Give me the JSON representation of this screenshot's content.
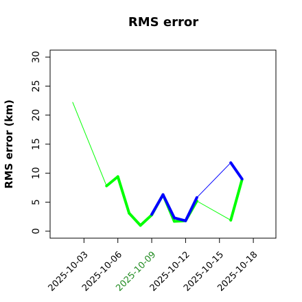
{
  "chart_data": {
    "type": "line",
    "title": "RMS error",
    "ylabel": "RMS error (km)",
    "x": [
      "2025-10-02",
      "2025-10-05",
      "2025-10-06",
      "2025-10-07",
      "2025-10-08",
      "2025-10-09",
      "2025-10-10",
      "2025-10-11",
      "2025-10-12",
      "2025-10-13",
      "2025-10-16",
      "2025-10-17"
    ],
    "series": [
      {
        "color": "#00ff00",
        "values": [
          22.2,
          7.8,
          9.4,
          3.1,
          1.0,
          2.8,
          6.3,
          1.7,
          1.8,
          5.2,
          1.9,
          8.9
        ]
      },
      {
        "color": "#0000ff",
        "values": [
          null,
          null,
          null,
          null,
          null,
          2.9,
          6.3,
          2.3,
          1.8,
          5.8,
          11.8,
          9.0
        ]
      }
    ],
    "xlim": [
      "2025-09-30",
      "2025-10-20"
    ],
    "xticks": [
      "2025-10-03",
      "2025-10-06",
      "2025-10-09",
      "2025-10-12",
      "2025-10-15",
      "2025-10-18"
    ],
    "xtick_colors": [
      "#000000",
      "#000000",
      "#228b22",
      "#000000",
      "#000000",
      "#000000"
    ],
    "ylim": [
      -1.2,
      31.2
    ],
    "yticks": [
      0,
      5,
      10,
      15,
      20,
      25,
      30
    ],
    "grid": false
  }
}
